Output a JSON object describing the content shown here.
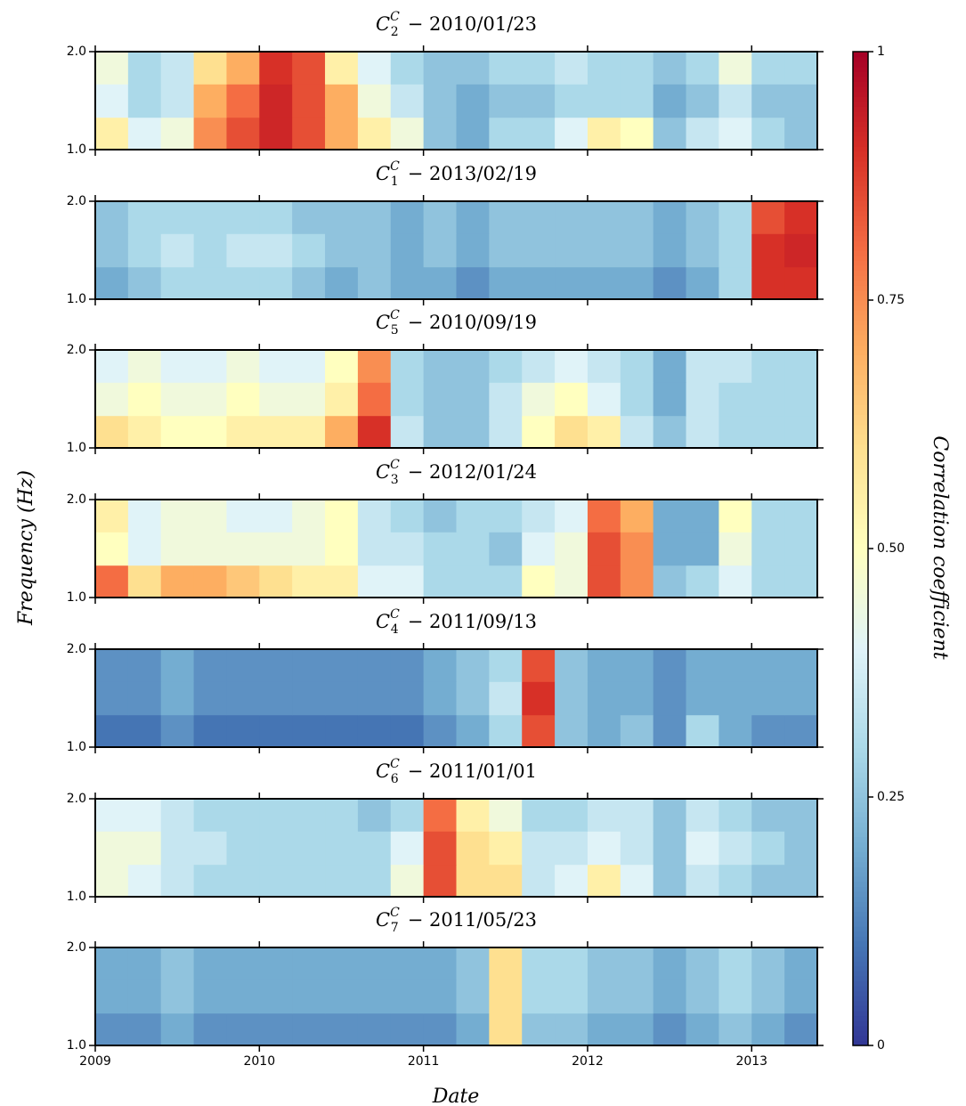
{
  "figure": {
    "ylabel": "Frequency (Hz)",
    "xlabel": "Date"
  },
  "colorbar": {
    "label": "Correlation coefficient",
    "lim": [
      0,
      1
    ],
    "ticks": [
      0,
      0.25,
      {
        "value": 0.5,
        "label": "0.50"
      },
      0.75,
      1
    ],
    "colors": [
      "#313695",
      "#4575b4",
      "#74add1",
      "#abd9e9",
      "#e0f3f8",
      "#ffffbf",
      "#fee090",
      "#fdae61",
      "#f46d43",
      "#d73027",
      "#a50026"
    ]
  },
  "chart_data": [
    {
      "type": "heatmap",
      "title": {
        "base": "C",
        "sup": "C",
        "sub": "2",
        "text": "− 2010/01/23"
      },
      "x": [
        2009,
        2009.2,
        2009.4,
        2009.6,
        2009.8,
        2010,
        2010.2,
        2010.4,
        2010.6,
        2010.8,
        2011,
        2011.2,
        2011.4,
        2011.6,
        2011.8,
        2012,
        2012.2,
        2012.4,
        2012.6,
        2012.8,
        2013,
        2013.2,
        2013.4
      ],
      "y": [
        1.0,
        1.33,
        1.67,
        2.0
      ],
      "values": [
        [
          0.55,
          0.4,
          0.45,
          0.75,
          0.85,
          0.92,
          0.85,
          0.7,
          0.55,
          0.45,
          0.25,
          0.2,
          0.3,
          0.3,
          0.4,
          0.55,
          0.5,
          0.25,
          0.35,
          0.4,
          0.3,
          0.25
        ],
        [
          0.4,
          0.3,
          0.35,
          0.7,
          0.8,
          0.92,
          0.85,
          0.7,
          0.45,
          0.35,
          0.25,
          0.2,
          0.25,
          0.25,
          0.3,
          0.3,
          0.3,
          0.2,
          0.25,
          0.35,
          0.25,
          0.25
        ],
        [
          0.45,
          0.3,
          0.35,
          0.6,
          0.7,
          0.9,
          0.85,
          0.55,
          0.4,
          0.3,
          0.25,
          0.25,
          0.3,
          0.3,
          0.35,
          0.3,
          0.3,
          0.25,
          0.3,
          0.45,
          0.3,
          0.3
        ]
      ],
      "xlim": [
        2009,
        2013.4
      ],
      "ylim": [
        1,
        2
      ],
      "xticks": [
        2009,
        2010,
        2011,
        2012,
        2013
      ],
      "yticks": [
        {
          "value": 1,
          "label": "1.0"
        },
        {
          "value": 2,
          "label": "2.0"
        }
      ]
    },
    {
      "type": "heatmap",
      "title": {
        "base": "C",
        "sup": "C",
        "sub": "1",
        "text": "− 2013/02/19"
      },
      "x": [
        2009,
        2009.2,
        2009.4,
        2009.6,
        2009.8,
        2010,
        2010.2,
        2010.4,
        2010.6,
        2010.8,
        2011,
        2011.2,
        2011.4,
        2011.6,
        2011.8,
        2012,
        2012.2,
        2012.4,
        2012.6,
        2012.8,
        2013,
        2013.2,
        2013.4
      ],
      "y": [
        1.0,
        1.33,
        1.67,
        2.0
      ],
      "values": [
        [
          0.2,
          0.25,
          0.3,
          0.3,
          0.3,
          0.3,
          0.25,
          0.2,
          0.25,
          0.2,
          0.2,
          0.15,
          0.2,
          0.2,
          0.2,
          0.2,
          0.2,
          0.15,
          0.2,
          0.3,
          0.9,
          0.9
        ],
        [
          0.25,
          0.3,
          0.35,
          0.3,
          0.35,
          0.35,
          0.3,
          0.25,
          0.25,
          0.2,
          0.25,
          0.2,
          0.25,
          0.25,
          0.25,
          0.25,
          0.25,
          0.2,
          0.25,
          0.3,
          0.9,
          0.92
        ],
        [
          0.25,
          0.3,
          0.3,
          0.3,
          0.3,
          0.3,
          0.25,
          0.25,
          0.25,
          0.2,
          0.25,
          0.2,
          0.25,
          0.25,
          0.25,
          0.25,
          0.25,
          0.2,
          0.25,
          0.3,
          0.85,
          0.9
        ]
      ],
      "xlim": [
        2009,
        2013.4
      ],
      "ylim": [
        1,
        2
      ],
      "xticks": [
        2009,
        2010,
        2011,
        2012,
        2013
      ],
      "yticks": [
        {
          "value": 1,
          "label": "1.0"
        },
        {
          "value": 2,
          "label": "2.0"
        }
      ]
    },
    {
      "type": "heatmap",
      "title": {
        "base": "C",
        "sup": "C",
        "sub": "5",
        "text": "− 2010/09/19"
      },
      "x": [
        2009,
        2009.2,
        2009.4,
        2009.6,
        2009.8,
        2010,
        2010.2,
        2010.4,
        2010.6,
        2010.8,
        2011,
        2011.2,
        2011.4,
        2011.6,
        2011.8,
        2012,
        2012.2,
        2012.4,
        2012.6,
        2012.8,
        2013,
        2013.2,
        2013.4
      ],
      "y": [
        1.0,
        1.33,
        1.67,
        2.0
      ],
      "values": [
        [
          0.6,
          0.55,
          0.5,
          0.5,
          0.55,
          0.55,
          0.55,
          0.7,
          0.9,
          0.35,
          0.25,
          0.25,
          0.35,
          0.5,
          0.6,
          0.55,
          0.35,
          0.25,
          0.35,
          0.3,
          0.3,
          0.3
        ],
        [
          0.45,
          0.5,
          0.45,
          0.45,
          0.5,
          0.45,
          0.45,
          0.55,
          0.8,
          0.3,
          0.25,
          0.25,
          0.35,
          0.45,
          0.5,
          0.4,
          0.3,
          0.2,
          0.35,
          0.3,
          0.3,
          0.3
        ],
        [
          0.4,
          0.45,
          0.4,
          0.4,
          0.45,
          0.4,
          0.4,
          0.5,
          0.75,
          0.3,
          0.25,
          0.25,
          0.3,
          0.35,
          0.4,
          0.35,
          0.3,
          0.2,
          0.35,
          0.35,
          0.3,
          0.3
        ]
      ],
      "xlim": [
        2009,
        2013.4
      ],
      "ylim": [
        1,
        2
      ],
      "xticks": [
        2009,
        2010,
        2011,
        2012,
        2013
      ],
      "yticks": [
        {
          "value": 1,
          "label": "1.0"
        },
        {
          "value": 2,
          "label": "2.0"
        }
      ]
    },
    {
      "type": "heatmap",
      "title": {
        "base": "C",
        "sup": "C",
        "sub": "3",
        "text": "− 2012/01/24"
      },
      "x": [
        2009,
        2009.2,
        2009.4,
        2009.6,
        2009.8,
        2010,
        2010.2,
        2010.4,
        2010.6,
        2010.8,
        2011,
        2011.2,
        2011.4,
        2011.6,
        2011.8,
        2012,
        2012.2,
        2012.4,
        2012.6,
        2012.8,
        2013,
        2013.2,
        2013.4
      ],
      "y": [
        1.0,
        1.33,
        1.67,
        2.0
      ],
      "values": [
        [
          0.8,
          0.6,
          0.7,
          0.7,
          0.65,
          0.6,
          0.55,
          0.55,
          0.4,
          0.4,
          0.3,
          0.3,
          0.3,
          0.5,
          0.45,
          0.85,
          0.75,
          0.25,
          0.3,
          0.4,
          0.3,
          0.3
        ],
        [
          0.5,
          0.4,
          0.45,
          0.45,
          0.45,
          0.45,
          0.45,
          0.5,
          0.35,
          0.35,
          0.3,
          0.3,
          0.25,
          0.4,
          0.45,
          0.85,
          0.75,
          0.2,
          0.2,
          0.45,
          0.3,
          0.3
        ],
        [
          0.55,
          0.4,
          0.45,
          0.45,
          0.4,
          0.4,
          0.45,
          0.5,
          0.35,
          0.3,
          0.25,
          0.3,
          0.3,
          0.35,
          0.4,
          0.8,
          0.7,
          0.2,
          0.2,
          0.5,
          0.3,
          0.3
        ]
      ],
      "xlim": [
        2009,
        2013.4
      ],
      "ylim": [
        1,
        2
      ],
      "xticks": [
        2009,
        2010,
        2011,
        2012,
        2013
      ],
      "yticks": [
        {
          "value": 1,
          "label": "1.0"
        },
        {
          "value": 2,
          "label": "2.0"
        }
      ]
    },
    {
      "type": "heatmap",
      "title": {
        "base": "C",
        "sup": "C",
        "sub": "4",
        "text": "− 2011/09/13"
      },
      "x": [
        2009,
        2009.2,
        2009.4,
        2009.6,
        2009.8,
        2010,
        2010.2,
        2010.4,
        2010.6,
        2010.8,
        2011,
        2011.2,
        2011.4,
        2011.6,
        2011.8,
        2012,
        2012.2,
        2012.4,
        2012.6,
        2012.8,
        2013,
        2013.2,
        2013.4
      ],
      "y": [
        1.0,
        1.33,
        1.67,
        2.0
      ],
      "values": [
        [
          0.1,
          0.1,
          0.15,
          0.1,
          0.1,
          0.1,
          0.1,
          0.1,
          0.1,
          0.1,
          0.15,
          0.2,
          0.3,
          0.85,
          0.25,
          0.2,
          0.25,
          0.15,
          0.3,
          0.2,
          0.15,
          0.15
        ],
        [
          0.15,
          0.15,
          0.2,
          0.15,
          0.15,
          0.15,
          0.15,
          0.15,
          0.15,
          0.15,
          0.2,
          0.25,
          0.35,
          0.9,
          0.25,
          0.2,
          0.2,
          0.15,
          0.2,
          0.2,
          0.2,
          0.2
        ],
        [
          0.15,
          0.15,
          0.2,
          0.15,
          0.15,
          0.15,
          0.15,
          0.15,
          0.15,
          0.15,
          0.2,
          0.25,
          0.3,
          0.85,
          0.25,
          0.2,
          0.2,
          0.15,
          0.2,
          0.2,
          0.2,
          0.2
        ]
      ],
      "xlim": [
        2009,
        2013.4
      ],
      "ylim": [
        1,
        2
      ],
      "xticks": [
        2009,
        2010,
        2011,
        2012,
        2013
      ],
      "yticks": [
        {
          "value": 1,
          "label": "1.0"
        },
        {
          "value": 2,
          "label": "2.0"
        }
      ]
    },
    {
      "type": "heatmap",
      "title": {
        "base": "C",
        "sup": "C",
        "sub": "6",
        "text": "− 2011/01/01"
      },
      "x": [
        2009,
        2009.2,
        2009.4,
        2009.6,
        2009.8,
        2010,
        2010.2,
        2010.4,
        2010.6,
        2010.8,
        2011,
        2011.2,
        2011.4,
        2011.6,
        2011.8,
        2012,
        2012.2,
        2012.4,
        2012.6,
        2012.8,
        2013,
        2013.2,
        2013.4
      ],
      "y": [
        1.0,
        1.33,
        1.67,
        2.0
      ],
      "values": [
        [
          0.45,
          0.4,
          0.35,
          0.3,
          0.3,
          0.3,
          0.3,
          0.3,
          0.3,
          0.45,
          0.85,
          0.6,
          0.6,
          0.35,
          0.4,
          0.55,
          0.4,
          0.25,
          0.35,
          0.3,
          0.25,
          0.25
        ],
        [
          0.45,
          0.45,
          0.35,
          0.35,
          0.3,
          0.3,
          0.3,
          0.3,
          0.3,
          0.4,
          0.85,
          0.6,
          0.55,
          0.35,
          0.35,
          0.4,
          0.35,
          0.25,
          0.4,
          0.35,
          0.3,
          0.25
        ],
        [
          0.4,
          0.4,
          0.35,
          0.3,
          0.3,
          0.3,
          0.3,
          0.3,
          0.25,
          0.3,
          0.8,
          0.55,
          0.45,
          0.3,
          0.3,
          0.35,
          0.35,
          0.25,
          0.35,
          0.3,
          0.25,
          0.25
        ]
      ],
      "xlim": [
        2009,
        2013.4
      ],
      "ylim": [
        1,
        2
      ],
      "xticks": [
        2009,
        2010,
        2011,
        2012,
        2013
      ],
      "yticks": [
        {
          "value": 1,
          "label": "1.0"
        },
        {
          "value": 2,
          "label": "2.0"
        }
      ]
    },
    {
      "type": "heatmap",
      "title": {
        "base": "C",
        "sup": "C",
        "sub": "7",
        "text": "− 2011/05/23"
      },
      "x": [
        2009,
        2009.2,
        2009.4,
        2009.6,
        2009.8,
        2010,
        2010.2,
        2010.4,
        2010.6,
        2010.8,
        2011,
        2011.2,
        2011.4,
        2011.6,
        2011.8,
        2012,
        2012.2,
        2012.4,
        2012.6,
        2012.8,
        2013,
        2013.2,
        2013.4
      ],
      "y": [
        1.0,
        1.33,
        1.67,
        2.0
      ],
      "values": [
        [
          0.15,
          0.15,
          0.2,
          0.15,
          0.15,
          0.15,
          0.15,
          0.15,
          0.15,
          0.15,
          0.15,
          0.2,
          0.6,
          0.25,
          0.25,
          0.2,
          0.2,
          0.15,
          0.2,
          0.25,
          0.2,
          0.15
        ],
        [
          0.2,
          0.2,
          0.25,
          0.2,
          0.2,
          0.2,
          0.2,
          0.2,
          0.2,
          0.2,
          0.2,
          0.25,
          0.6,
          0.3,
          0.3,
          0.25,
          0.25,
          0.2,
          0.25,
          0.3,
          0.25,
          0.2
        ],
        [
          0.2,
          0.2,
          0.25,
          0.2,
          0.2,
          0.2,
          0.2,
          0.2,
          0.2,
          0.2,
          0.2,
          0.25,
          0.6,
          0.3,
          0.3,
          0.25,
          0.25,
          0.2,
          0.25,
          0.3,
          0.25,
          0.2
        ]
      ],
      "xlim": [
        2009,
        2013.4
      ],
      "ylim": [
        1,
        2
      ],
      "xticks": [
        2009,
        2010,
        2011,
        2012,
        2013
      ],
      "yticks": [
        {
          "value": 1,
          "label": "1.0"
        },
        {
          "value": 2,
          "label": "2.0"
        }
      ]
    }
  ]
}
